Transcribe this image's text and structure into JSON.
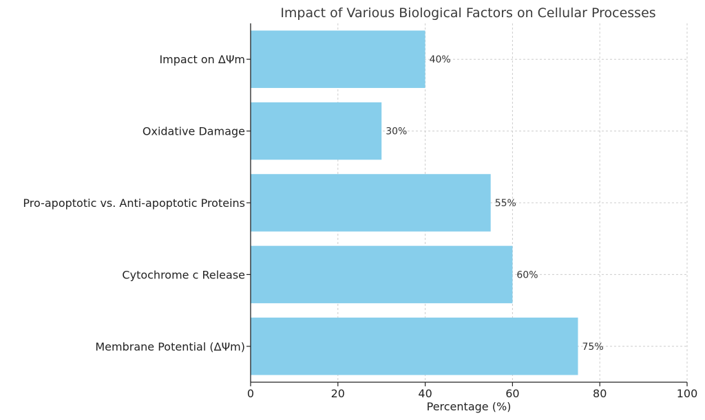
{
  "chart_data": {
    "type": "bar",
    "orientation": "horizontal",
    "title": "Impact of Various Biological Factors on Cellular Processes",
    "xlabel": "Percentage (%)",
    "ylabel": "",
    "categories": [
      "Membrane Potential (ΔΨm)",
      "Cytochrome c Release",
      "Pro-apoptotic vs. Anti-apoptotic Proteins",
      "Oxidative Damage",
      "Impact on ΔΨm"
    ],
    "values": [
      75,
      60,
      55,
      30,
      40
    ],
    "value_labels": [
      "75%",
      "60%",
      "55%",
      "30%",
      "40%"
    ],
    "xlim": [
      0,
      100
    ],
    "xticks": [
      0,
      20,
      40,
      60,
      80,
      100
    ],
    "grid": true,
    "bar_color": "#87ceeb"
  }
}
